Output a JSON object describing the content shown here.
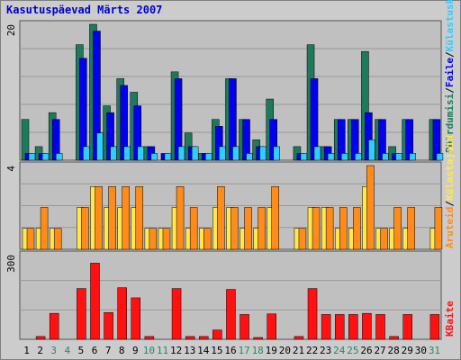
{
  "title": "Kasutuspäevad Märts 2007",
  "colors": {
    "panel_bg": "#c0c0c0",
    "grid": "#999999",
    "pageviews": "#1e7a5c",
    "files": "#0000ee",
    "hits": "#33ccff",
    "visits": "#ff8c1a",
    "hosts": "#ffe84d",
    "kbytes": "#ff1111",
    "weekend_label": "#228b66",
    "weekday_label": "#000000"
  },
  "chart_data": [
    {
      "type": "bar",
      "title": "",
      "y_tick_label": "20",
      "ylim": [
        0,
        20
      ],
      "x": [
        "1",
        "2",
        "3",
        "4",
        "5",
        "6",
        "7",
        "8",
        "9",
        "10",
        "11",
        "12",
        "13",
        "14",
        "15",
        "16",
        "17",
        "18",
        "19",
        "20",
        "21",
        "22",
        "23",
        "24",
        "25",
        "26",
        "27",
        "28",
        "29",
        "30",
        "31"
      ],
      "weekend_days": [
        "3",
        "4",
        "10",
        "11",
        "17",
        "18",
        "24",
        "25",
        "31"
      ],
      "series": [
        {
          "name": "Pöördumisi",
          "color_key": "pageviews",
          "values": [
            6,
            2,
            7,
            0,
            17,
            20,
            8,
            12,
            10,
            2,
            0,
            13,
            4,
            1,
            6,
            12,
            6,
            3,
            9,
            0,
            2,
            17,
            2,
            6,
            6,
            16,
            6,
            2,
            6,
            0,
            6
          ]
        },
        {
          "name": "Faile",
          "color_key": "files",
          "values": [
            1,
            1,
            6,
            0,
            15,
            19,
            7,
            11,
            8,
            2,
            1,
            12,
            2,
            1,
            5,
            12,
            6,
            2,
            6,
            0,
            1,
            12,
            2,
            6,
            6,
            7,
            6,
            1,
            6,
            0,
            6
          ]
        },
        {
          "name": "Külastuskülgi",
          "color_key": "hits",
          "values": [
            1,
            1,
            1,
            0,
            2,
            4,
            2,
            2,
            2,
            1,
            1,
            2,
            2,
            1,
            2,
            2,
            1,
            2,
            2,
            0,
            1,
            2,
            1,
            1,
            1,
            3,
            1,
            1,
            1,
            0,
            1
          ]
        }
      ],
      "vertical_legend_parts": [
        "Pöördumisi",
        "Faile",
        "Külastuskülgi"
      ]
    },
    {
      "type": "bar",
      "title": "",
      "y_tick_label": "4",
      "ylim": [
        0,
        4
      ],
      "x": [
        "1",
        "2",
        "3",
        "4",
        "5",
        "6",
        "7",
        "8",
        "9",
        "10",
        "11",
        "12",
        "13",
        "14",
        "15",
        "16",
        "17",
        "18",
        "19",
        "20",
        "21",
        "22",
        "23",
        "24",
        "25",
        "26",
        "27",
        "28",
        "29",
        "30",
        "31"
      ],
      "series": [
        {
          "name": "Külastajaid",
          "color_key": "hosts",
          "values": [
            1,
            1,
            1,
            0,
            2,
            3,
            2,
            2,
            2,
            1,
            1,
            2,
            1,
            1,
            2,
            2,
            1,
            1,
            2,
            0,
            1,
            2,
            2,
            1,
            1,
            3,
            1,
            1,
            1,
            0,
            1
          ]
        },
        {
          "name": "Aruteid",
          "color_key": "visits",
          "values": [
            1,
            2,
            1,
            0,
            2,
            3,
            3,
            3,
            3,
            1,
            1,
            3,
            2,
            1,
            3,
            2,
            2,
            2,
            3,
            0,
            1,
            2,
            2,
            2,
            2,
            4,
            1,
            2,
            2,
            0,
            2
          ]
        }
      ],
      "vertical_legend_parts": [
        "Aruteid",
        "Külastajaid"
      ]
    },
    {
      "type": "bar",
      "title": "",
      "y_tick_label": "300",
      "ylim": [
        0,
        300
      ],
      "x": [
        "1",
        "2",
        "3",
        "4",
        "5",
        "6",
        "7",
        "8",
        "9",
        "10",
        "11",
        "12",
        "13",
        "14",
        "15",
        "16",
        "17",
        "18",
        "19",
        "20",
        "21",
        "22",
        "23",
        "24",
        "25",
        "26",
        "27",
        "28",
        "29",
        "30",
        "31"
      ],
      "series": [
        {
          "name": "KBaite",
          "color_key": "kbytes",
          "values": [
            0,
            10,
            92,
            0,
            180,
            270,
            95,
            183,
            147,
            10,
            0,
            180,
            10,
            10,
            33,
            177,
            88,
            5,
            90,
            0,
            10,
            180,
            88,
            88,
            88,
            92,
            88,
            10,
            88,
            0,
            88
          ]
        }
      ],
      "vertical_legend_parts": [
        "KBaite"
      ]
    }
  ]
}
